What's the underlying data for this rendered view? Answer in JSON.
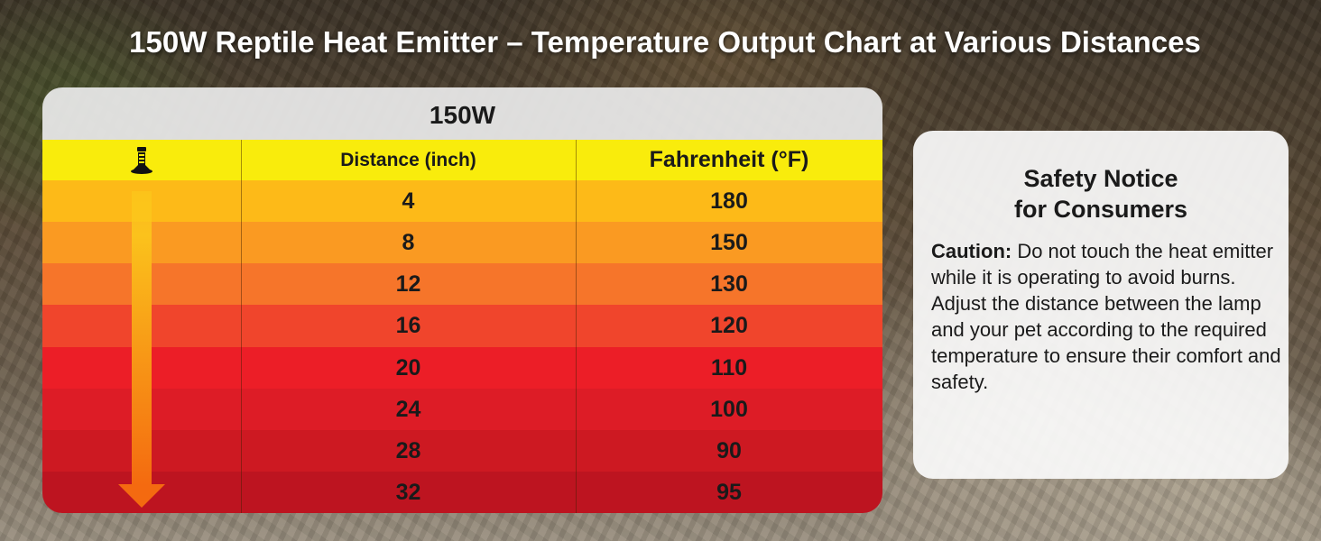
{
  "page": {
    "title": "150W Reptile Heat Emitter – Temperature Output Chart at Various Distances"
  },
  "table": {
    "heading": "150W",
    "lamp_icon": "heat-lamp-icon",
    "arrow_icon": "down-arrow-icon"
  },
  "chart_data": {
    "type": "table",
    "title": "150W",
    "columns": [
      "Distance (inch)",
      "Fahrenheit (°F)"
    ],
    "rows": [
      {
        "distance": "4",
        "fahrenheit": "180",
        "color": "#fdba18"
      },
      {
        "distance": "8",
        "fahrenheit": "150",
        "color": "#fa9a22"
      },
      {
        "distance": "12",
        "fahrenheit": "130",
        "color": "#f6752a"
      },
      {
        "distance": "16",
        "fahrenheit": "120",
        "color": "#f0452c"
      },
      {
        "distance": "20",
        "fahrenheit": "110",
        "color": "#ec1e27"
      },
      {
        "distance": "24",
        "fahrenheit": "100",
        "color": "#dd1c26"
      },
      {
        "distance": "28",
        "fahrenheit": "90",
        "color": "#cd1922"
      },
      {
        "distance": "32",
        "fahrenheit": "95",
        "color": "#bd1420"
      }
    ]
  },
  "notice": {
    "title_line1": "Safety Notice",
    "title_line2": "for Consumers",
    "caution_label": "Caution:",
    "caution_text": " Do not touch the heat emitter while it is operating to avoid burns.",
    "advice_text": "Adjust the distance between the lamp and your pet according to the required temperature to ensure their comfort and safety."
  },
  "colors": {
    "header_yellow": "#f9ec0c",
    "arrow_top": "#fbd31c",
    "arrow_bottom": "#f46a10"
  }
}
